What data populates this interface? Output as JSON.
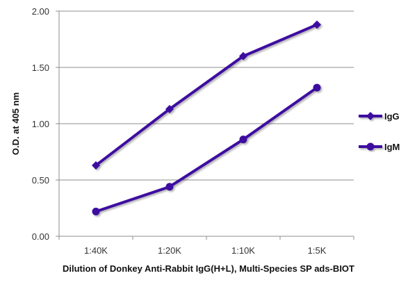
{
  "chart_data": {
    "type": "line",
    "title": "",
    "xlabel": "Dilution of Donkey Anti-Rabbit IgG(H+L), Multi-Species SP ads-BIOT",
    "ylabel": "O.D. at 405 nm",
    "categories": [
      "1:40K",
      "1:20K",
      "1:10K",
      "1:5K"
    ],
    "series": [
      {
        "name": "IgG",
        "marker": "diamond",
        "values": [
          0.63,
          1.13,
          1.6,
          1.88
        ]
      },
      {
        "name": "IgM",
        "marker": "circle",
        "values": [
          0.22,
          0.44,
          0.86,
          1.32
        ]
      }
    ],
    "ylim": [
      0,
      2.0
    ],
    "yticks": [
      "0.00",
      "0.50",
      "1.00",
      "1.50",
      "2.00"
    ],
    "grid": true,
    "legend_position": "right",
    "colors": {
      "line": "#3d0ca0",
      "grid": "#8c8c8c"
    }
  }
}
